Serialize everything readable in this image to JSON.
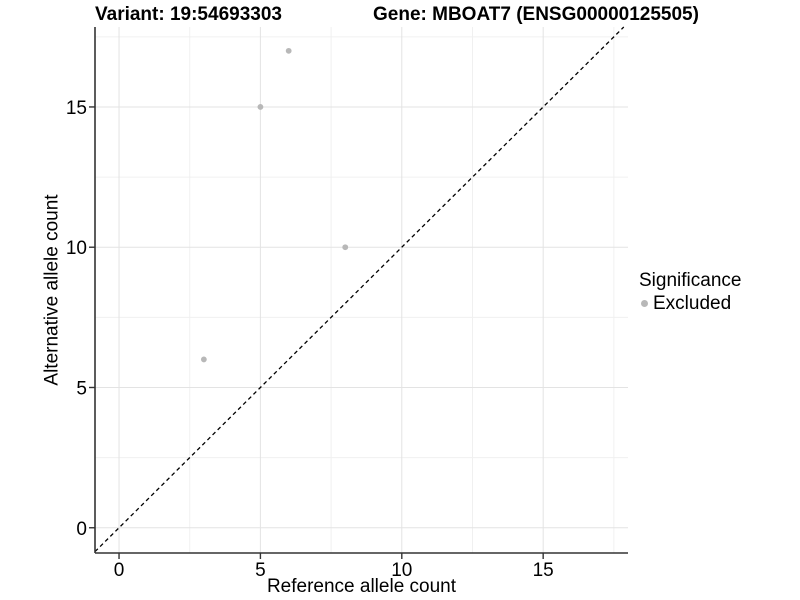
{
  "chart_data": {
    "type": "scatter",
    "title_left": "Variant: 19:54693303",
    "title_right": "Gene: MBOAT7 (ENSG00000125505)",
    "xlabel": "Reference allele count",
    "ylabel": "Alternative allele count",
    "xlim": [
      -0.85,
      18.0
    ],
    "ylim": [
      -0.9,
      17.85
    ],
    "x_ticks": [
      0,
      5,
      10,
      15
    ],
    "y_ticks": [
      0,
      5,
      10,
      15
    ],
    "x_minor_ticks": [
      2.5,
      7.5,
      12.5,
      17.5
    ],
    "y_minor_ticks": [
      2.5,
      7.5,
      12.5,
      17.5
    ],
    "grid": "major and minor, light gray on white",
    "series": [
      {
        "name": "Excluded",
        "marker": "circle",
        "color": "#b8b8b8",
        "points": [
          {
            "x": 3,
            "y": 6
          },
          {
            "x": 5,
            "y": 15
          },
          {
            "x": 6,
            "y": 17
          },
          {
            "x": 8,
            "y": 10
          }
        ]
      }
    ],
    "reference_line": {
      "equation": "y = x",
      "style": "dashed",
      "color": "#000000"
    },
    "legend": {
      "title": "Significance",
      "position": "right",
      "items": [
        {
          "label": "Excluded",
          "color": "#b8b8b8",
          "marker": "circle"
        }
      ]
    }
  },
  "colors": {
    "axis_line": "#333333",
    "tick_mark": "#333333",
    "grid_major": "#e3e3e3",
    "grid_minor": "#f0f0f0",
    "background": "#ffffff"
  }
}
